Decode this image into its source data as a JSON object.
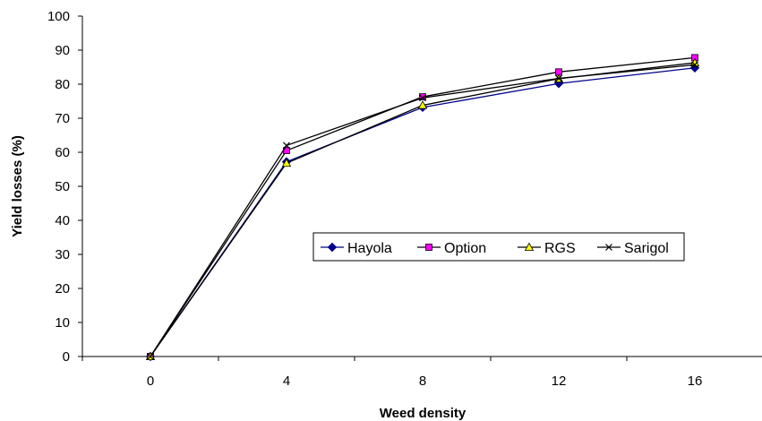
{
  "chart_data": {
    "type": "line",
    "title": "",
    "xlabel": "Weed density",
    "ylabel": "Yield losses (%)",
    "x": [
      0,
      4,
      8,
      12,
      16
    ],
    "x_ticks": [
      "0",
      "4",
      "8",
      "12",
      "16"
    ],
    "y_ticks": [
      "0",
      "10",
      "20",
      "30",
      "40",
      "50",
      "60",
      "70",
      "80",
      "90",
      "100"
    ],
    "ylim": [
      0,
      100
    ],
    "grid": false,
    "legend_position": "center-right",
    "series": [
      {
        "name": "Hayola",
        "marker": "diamond",
        "color": "#00008B",
        "values": [
          0,
          57.2,
          73.2,
          80.2,
          84.8
        ]
      },
      {
        "name": "Option",
        "marker": "square",
        "color": "#FF00FF",
        "values": [
          0,
          60.5,
          76.3,
          83.6,
          87.8
        ]
      },
      {
        "name": "RGS",
        "marker": "triangle",
        "color": "#FFFF00",
        "values": [
          0,
          56.8,
          73.8,
          81.6,
          86.3
        ]
      },
      {
        "name": "Sarigol",
        "marker": "x",
        "color": "#000000",
        "values": [
          0,
          62.0,
          76.0,
          81.7,
          85.7
        ]
      }
    ]
  }
}
